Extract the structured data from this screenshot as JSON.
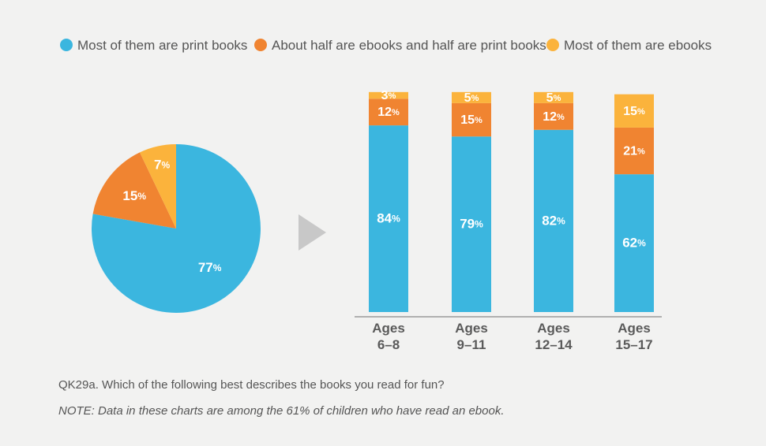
{
  "colors": {
    "print": "#3bb6df",
    "half": "#f08431",
    "ebook": "#fbb33c",
    "arrow": "#c8c8c8",
    "axis": "#9a9a9a"
  },
  "legend": [
    {
      "label": "Most of them are print books",
      "color": "#3bb6df"
    },
    {
      "label": "About half are ebooks and half are print books",
      "color": "#f08431"
    },
    {
      "label": "Most of them are ebooks",
      "color": "#fbb33c"
    }
  ],
  "chart_data": [
    {
      "type": "pie",
      "title": "",
      "labels": [
        "Most of them are print books",
        "About half are ebooks and half are print books",
        "Most of them are ebooks"
      ],
      "values": [
        77,
        15,
        7
      ],
      "unit": "%"
    },
    {
      "type": "bar",
      "stacked": true,
      "title": "",
      "categories": [
        {
          "line1": "Ages",
          "line2": "6–8"
        },
        {
          "line1": "Ages",
          "line2": "9–11"
        },
        {
          "line1": "Ages",
          "line2": "12–14"
        },
        {
          "line1": "Ages",
          "line2": "15–17"
        }
      ],
      "series": [
        {
          "name": "Most of them are print books",
          "values": [
            84,
            79,
            82,
            62
          ]
        },
        {
          "name": "About half are ebooks and half are print books",
          "values": [
            12,
            15,
            12,
            21
          ]
        },
        {
          "name": "Most of them are ebooks",
          "values": [
            3,
            5,
            5,
            15
          ]
        }
      ],
      "unit": "%",
      "ylim": [
        0,
        100
      ],
      "grid": false,
      "legend_position": "top"
    }
  ],
  "footnotes": {
    "question": "QK29a. Which of the following best describes the books you read for fun?",
    "note": "NOTE: Data in these charts are among the 61% of children who have read an ebook."
  }
}
